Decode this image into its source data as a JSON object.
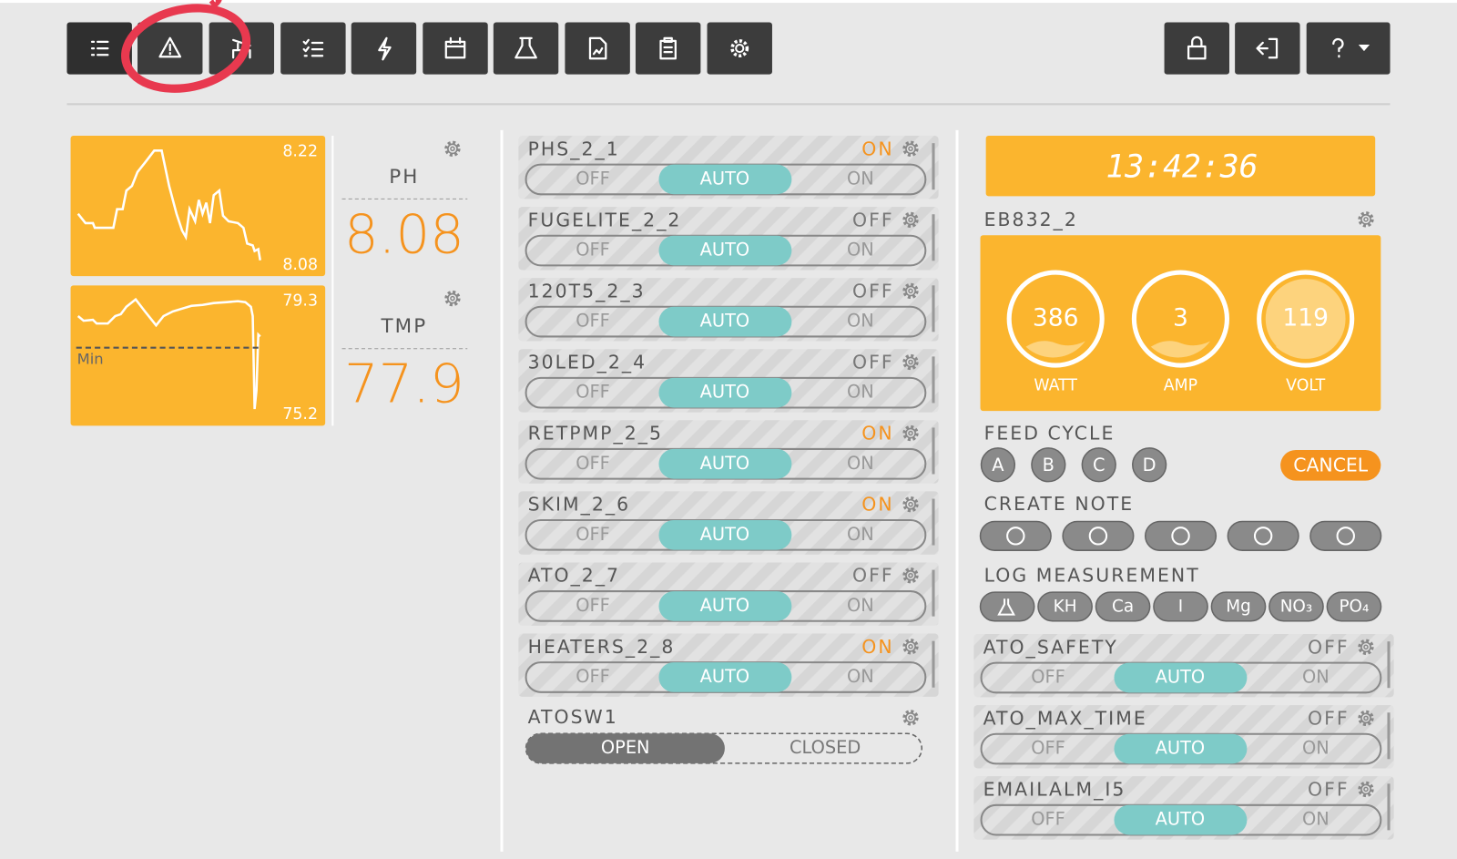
{
  "probes": [
    {
      "name": "PH",
      "value": 8.08,
      "chart_max": 8.22,
      "chart_min": 8.08
    },
    {
      "name": "TMP",
      "value": 77.9,
      "chart_max": 79.3,
      "chart_min": 75.2,
      "min_line_label": "Min"
    }
  ],
  "outlets": [
    {
      "name": "PHS_2_1",
      "state": "ON"
    },
    {
      "name": "FUGELITE_2_2",
      "state": "OFF"
    },
    {
      "name": "120T5_2_3",
      "state": "OFF"
    },
    {
      "name": "30LED_2_4",
      "state": "OFF"
    },
    {
      "name": "RETPMP_2_5",
      "state": "ON"
    },
    {
      "name": "SKIM_2_6",
      "state": "ON"
    },
    {
      "name": "ATO_2_7",
      "state": "OFF"
    },
    {
      "name": "HEATERS_2_8",
      "state": "ON"
    }
  ],
  "toggle_labels": {
    "off": "OFF",
    "auto": "AUTO",
    "on": "ON"
  },
  "switch": {
    "name": "ATOSW1",
    "open": "OPEN",
    "closed": "CLOSED"
  },
  "clock": "13:42:36",
  "power_monitor": {
    "name": "EB832_2",
    "readings": [
      {
        "label": "WATT",
        "value": 386
      },
      {
        "label": "AMP",
        "value": 3
      },
      {
        "label": "VOLT",
        "value": 119
      }
    ]
  },
  "feed_cycle": {
    "title": "FEED CYCLE",
    "cycles": [
      "A",
      "B",
      "C",
      "D"
    ],
    "cancel": "CANCEL"
  },
  "create_note": {
    "title": "CREATE NOTE"
  },
  "log_measurement": {
    "title": "LOG MEASUREMENT",
    "buttons": [
      "KH",
      "Ca",
      "I",
      "Mg",
      "NO₃",
      "PO₄"
    ]
  },
  "virtual_outlets": [
    {
      "name": "ATO_SAFETY",
      "state": "OFF"
    },
    {
      "name": "ATO_MAX_TIME",
      "state": "OFF"
    },
    {
      "name": "EMAILALM_I5",
      "state": "OFF"
    }
  ]
}
